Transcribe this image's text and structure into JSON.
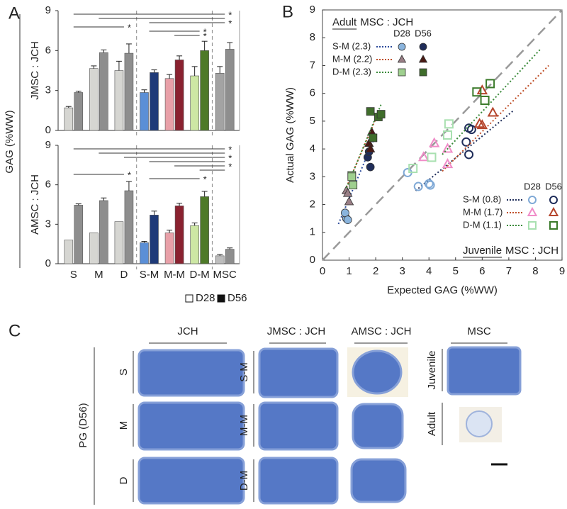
{
  "panel_a": {
    "label": "A",
    "ylabel": "GAG (%WW)"
  },
  "panel_b": {
    "label": "B"
  },
  "chart_data": [
    {
      "type": "bar",
      "ylabel": "JMSC : JCH",
      "ylim": [
        0,
        9
      ],
      "yticks": [
        0,
        3,
        6,
        9
      ],
      "series": [
        {
          "name": "D28",
          "colors": [
            "#d6d6d2",
            "#d6d6d2",
            "#d6d6d2",
            "#5b8fd6",
            "#e8a0a8",
            "#cde7a4",
            "#a3a3a3"
          ],
          "values": [
            1.7,
            4.65,
            4.5,
            2.85,
            3.9,
            4.1,
            4.3
          ],
          "errors": [
            0.1,
            0.2,
            0.7,
            0.2,
            0.3,
            0.7,
            0.5
          ]
        },
        {
          "name": "D56",
          "colors": [
            "#8e8e8e",
            "#8e8e8e",
            "#8e8e8e",
            "#1f3a78",
            "#8a2230",
            "#4e7a28",
            "#8e8e8e"
          ],
          "values": [
            2.85,
            5.85,
            5.8,
            4.35,
            5.3,
            6.0,
            6.1
          ],
          "errors": [
            0.1,
            0.2,
            0.7,
            0.2,
            0.3,
            0.7,
            0.5
          ]
        }
      ],
      "significance": [
        {
          "from": "S",
          "to": "MSC",
          "label": "*"
        },
        {
          "from": "M",
          "to": "MSC"
        },
        {
          "from": "S-M",
          "to": "MSC",
          "label": "*"
        },
        {
          "from": "S",
          "to": "D",
          "label": "*"
        },
        {
          "from": "S-M",
          "to": "D-M",
          "label": "*"
        },
        {
          "from": "M-M",
          "to": "D-M",
          "label": "*"
        }
      ]
    },
    {
      "type": "bar",
      "ylabel": "AMSC : JCH",
      "ylim": [
        0,
        9
      ],
      "yticks": [
        0,
        3,
        6,
        9
      ],
      "categories": [
        "S",
        "M",
        "D",
        "S-M",
        "M-M",
        "D-M",
        "MSC"
      ],
      "series": [
        {
          "colors": [
            "#d6d6d2",
            "#d6d6d2",
            "#d6d6d2",
            "#5b8fd6",
            "#e8a0a8",
            "#cde7a4",
            "#bdbdbd"
          ],
          "values": [
            1.8,
            2.35,
            3.2,
            1.6,
            2.35,
            2.9,
            0.6
          ],
          "errors": [
            0,
            0,
            0,
            0.1,
            0.2,
            0.2,
            0.1
          ]
        },
        {
          "colors": [
            "#8e8e8e",
            "#8e8e8e",
            "#8e8e8e",
            "#1f3a78",
            "#8a2230",
            "#4e7a28",
            "#8e8e8e"
          ],
          "values": [
            4.45,
            4.8,
            5.55,
            3.7,
            4.4,
            5.1,
            1.1
          ],
          "errors": [
            0.1,
            0.2,
            0.7,
            0.3,
            0.2,
            0.4,
            0.1
          ]
        }
      ],
      "significance": [
        {
          "from": "S",
          "to": "MSC",
          "label": "*"
        },
        {
          "from": "M",
          "to": "MSC"
        },
        {
          "from": "D",
          "to": "MSC",
          "label": "*"
        },
        {
          "from": "S-M",
          "to": "MSC"
        },
        {
          "from": "M-M",
          "to": "MSC",
          "label": "*"
        },
        {
          "from": "D-M",
          "to": "MSC"
        },
        {
          "from": "S",
          "to": "D",
          "label": "*"
        },
        {
          "from": "S-M",
          "to": "D-M",
          "label": "*"
        }
      ]
    },
    {
      "type": "scatter",
      "xlabel": "Expected GAG (%WW)",
      "ylabel": "Actual GAG (%WW)",
      "xlim": [
        0,
        9
      ],
      "ylim": [
        0,
        9
      ],
      "xticks": [
        0,
        1,
        2,
        3,
        4,
        5,
        6,
        7,
        8,
        9
      ],
      "yticks": [
        0,
        1,
        2,
        3,
        4,
        5,
        6,
        7,
        8,
        9
      ],
      "diagonal": true,
      "groups": [
        {
          "title_emphasis": "Adult",
          "title": "MSC : JCH",
          "legend": "top-left",
          "filled": true,
          "columns": [
            "D28",
            "D56"
          ],
          "rows": [
            {
              "label": "S-M (2.3)",
              "marker": "circle",
              "fit": {
                "color": "#2b4a9a",
                "x": [
                  0.6,
                  2.0
                ],
                "y": [
                  1.3,
                  4.5
                ]
              },
              "series": [
                {
                  "color": "#8ab4dd",
                  "x": [
                    0.9,
                    0.85,
                    0.95
                  ],
                  "y": [
                    1.5,
                    1.7,
                    1.45
                  ]
                },
                {
                  "color": "#1f2d5a",
                  "x": [
                    1.7,
                    1.8,
                    1.75
                  ],
                  "y": [
                    3.7,
                    3.35,
                    3.9
                  ]
                }
              ]
            },
            {
              "label": "M-M (2.2)",
              "marker": "triangle",
              "fit": {
                "color": "#c0502a",
                "x": [
                  0.8,
                  2.1
                ],
                "y": [
                  2.4,
                  5.3
                ]
              },
              "series": [
                {
                  "color": "#9a7f86",
                  "x": [
                    0.9,
                    1.0,
                    0.95
                  ],
                  "y": [
                    2.5,
                    2.1,
                    2.4
                  ]
                },
                {
                  "color": "#4a1a14",
                  "x": [
                    1.75,
                    1.85,
                    1.8
                  ],
                  "y": [
                    4.2,
                    4.6,
                    4.0
                  ]
                }
              ]
            },
            {
              "label": "D-M (2.3)",
              "marker": "square",
              "fit": {
                "color": "#3a8a3a",
                "x": [
                  0.9,
                  2.2
                ],
                "y": [
                  2.6,
                  5.6
                ]
              },
              "series": [
                {
                  "color": "#9fd08f",
                  "x": [
                    1.1,
                    1.15,
                    1.1
                  ],
                  "y": [
                    3.05,
                    2.7,
                    3.0
                  ]
                },
                {
                  "color": "#3f6d2b",
                  "x": [
                    1.8,
                    2.1,
                    2.2,
                    1.9
                  ],
                  "y": [
                    5.35,
                    5.15,
                    5.25,
                    4.4
                  ]
                }
              ]
            }
          ]
        },
        {
          "title_emphasis": "Juvenile",
          "title": "MSC : JCH",
          "legend": "bottom-right",
          "filled": false,
          "columns": [
            "D28",
            "D56"
          ],
          "rows": [
            {
              "label": "S-M (0.8)",
              "marker": "circle",
              "fit": {
                "color": "#1f2d5a",
                "x": [
                  3.5,
                  7.2
                ],
                "y": [
                  2.5,
                  5.4
                ]
              },
              "series": [
                {
                  "color": "#7fa9d6",
                  "x": [
                    3.2,
                    3.6,
                    4.0,
                    4.05
                  ],
                  "y": [
                    3.15,
                    2.65,
                    2.75,
                    2.7
                  ]
                },
                {
                  "color": "#1f2d5a",
                  "x": [
                    5.4,
                    5.5,
                    5.5,
                    5.6
                  ],
                  "y": [
                    4.25,
                    3.8,
                    4.75,
                    4.7
                  ]
                }
              ]
            },
            {
              "label": "M-M (1.7)",
              "marker": "triangle",
              "fit": {
                "color": "#c0502a",
                "x": [
                  4.5,
                  8.5
                ],
                "y": [
                  3.2,
                  7.0
                ]
              },
              "series": [
                {
                  "color": "#f08cc8",
                  "x": [
                    3.8,
                    4.2,
                    4.7,
                    4.7
                  ],
                  "y": [
                    3.7,
                    4.2,
                    3.45,
                    4.0
                  ]
                },
                {
                  "color": "#b5452c",
                  "x": [
                    5.9,
                    6.0,
                    6.0,
                    6.4
                  ],
                  "y": [
                    4.9,
                    4.85,
                    6.1,
                    5.3
                  ]
                }
              ]
            },
            {
              "label": "D-M (1.1)",
              "marker": "square",
              "fit": {
                "color": "#3a8a3a",
                "x": [
                  4.5,
                  8.2
                ],
                "y": [
                  3.8,
                  7.6
                ]
              },
              "series": [
                {
                  "color": "#a8e0b0",
                  "x": [
                    3.4,
                    4.1,
                    4.7,
                    4.75
                  ],
                  "y": [
                    3.3,
                    3.7,
                    4.5,
                    4.9
                  ]
                },
                {
                  "color": "#3a7a2a",
                  "x": [
                    5.8,
                    6.1,
                    6.3
                  ],
                  "y": [
                    6.05,
                    5.75,
                    6.35
                  ]
                }
              ]
            }
          ]
        }
      ]
    }
  ],
  "panel_c": {
    "label": "C",
    "ylabel": "PG (D56)",
    "columns": [
      {
        "title": "JCH",
        "rows": [
          "S",
          "M",
          "D"
        ]
      },
      {
        "title": "JMSC : JCH",
        "rows": [
          "S-M",
          "M-M",
          "D-M"
        ]
      },
      {
        "title": "AMSC : JCH"
      },
      {
        "title": "MSC",
        "rows": [
          "Juvenile",
          "Adult"
        ]
      }
    ]
  }
}
